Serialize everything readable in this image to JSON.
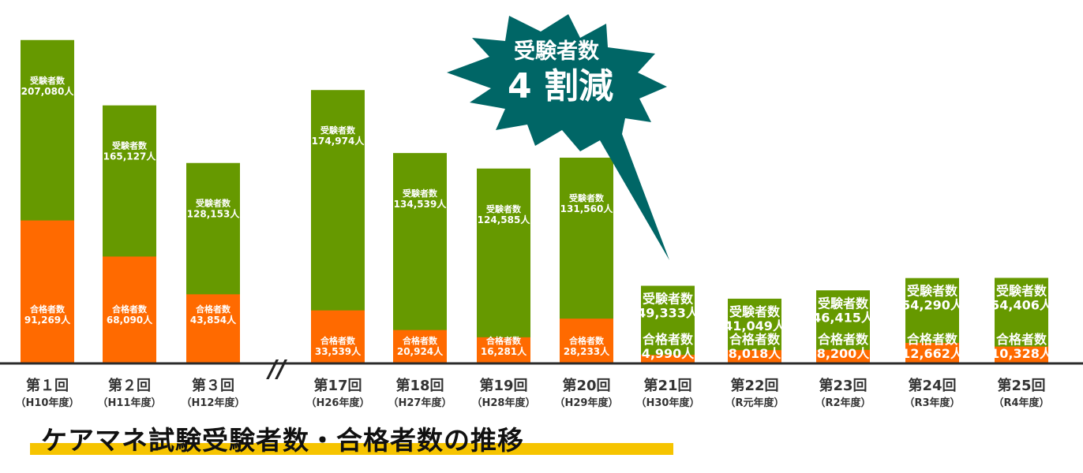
{
  "chart_data": {
    "type": "bar",
    "title": "ケアマネ試験受験者数・合格者数の推移",
    "categories": [
      "第１回",
      "第２回",
      "第３回",
      "第17回",
      "第18回",
      "第19回",
      "第20回",
      "第21回",
      "第22回",
      "第23回",
      "第24回",
      "第25回"
    ],
    "sublabels": [
      "（H10年度）",
      "（H11年度）",
      "（H12年度）",
      "（H26年度）",
      "（H27年度）",
      "（H28年度）",
      "（H29年度）",
      "（H30年度）",
      "（R元年度）",
      "（R2年度）",
      "（R3年度）",
      "（R4年度）"
    ],
    "series": [
      {
        "name": "受験者数",
        "color": "#669900",
        "values": [
          207080,
          165127,
          128153,
          174974,
          134539,
          124585,
          131560,
          49333,
          41049,
          46415,
          54290,
          54406
        ],
        "labels": [
          "207,080人",
          "165,127人",
          "128,153人",
          "174,974人",
          "134,539人",
          "124,585人",
          "131,560人",
          "49,333人",
          "41,049人",
          "46,415人",
          "54,290人",
          "54,406人"
        ]
      },
      {
        "name": "合格者数",
        "color": "#ff6a00",
        "values": [
          91269,
          68090,
          43854,
          33539,
          20924,
          16281,
          28233,
          4990,
          8018,
          8200,
          12662,
          10328
        ],
        "labels": [
          "91,269人",
          "68,090人",
          "43,854人",
          "33,539人",
          "20,924人",
          "16,281人",
          "28,233人",
          "4,990人",
          "8,018人",
          "8,200人",
          "12,662人",
          "10,328人"
        ]
      }
    ],
    "axis_break_after_index": 2,
    "axis_break_symbol": "//",
    "ylim": [
      0,
      210000
    ],
    "grid": false,
    "legend": "none",
    "annotation": {
      "line1": "受験者数",
      "line2": "4 割減",
      "color": "#006666"
    }
  }
}
